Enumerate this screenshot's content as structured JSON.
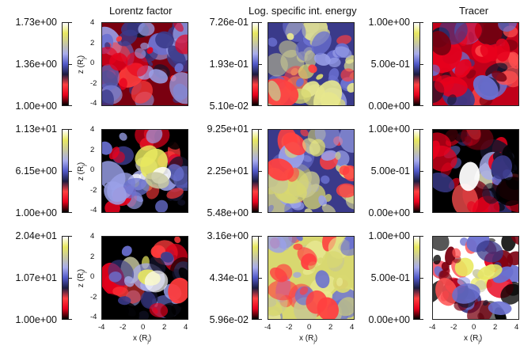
{
  "columns": [
    {
      "title": "Lorentz factor"
    },
    {
      "title": "Log. specific int. energy"
    },
    {
      "title": "Tracer"
    }
  ],
  "rows": [
    {
      "colorbars": [
        {
          "max": "1.73e+00",
          "mid": "1.36e+00",
          "min": "1.00e+00"
        },
        {
          "max": "7.26e-01",
          "mid": "1.93e-01",
          "min": "5.10e-02"
        },
        {
          "max": "1.00e+00",
          "mid": "5.00e-01",
          "min": "0.00e+00"
        }
      ]
    },
    {
      "colorbars": [
        {
          "max": "1.13e+01",
          "mid": "6.15e+00",
          "min": "1.00e+00"
        },
        {
          "max": "9.25e+01",
          "mid": "2.25e+01",
          "min": "5.48e+00"
        },
        {
          "max": "1.00e+00",
          "mid": "5.00e-01",
          "min": "0.00e+00"
        }
      ]
    },
    {
      "colorbars": [
        {
          "max": "2.04e+01",
          "mid": "1.07e+01",
          "min": "1.00e+00"
        },
        {
          "max": "3.16e+00",
          "mid": "4.34e-01",
          "min": "5.96e-02"
        },
        {
          "max": "1.00e+00",
          "mid": "5.00e-01",
          "min": "0.00e+00"
        }
      ]
    }
  ],
  "axes": {
    "xlabel": "x (R",
    "xlabel_sub": "j",
    "ylabel": "z (R",
    "ylabel_sub": "j",
    "ticks": [
      "-4",
      "-2",
      "0",
      "2",
      "4"
    ]
  },
  "colormap": [
    "#000000",
    "#e8001c",
    "#ff4040",
    "#1c1c40",
    "#5058c8",
    "#a8acec",
    "#c8c8a0",
    "#e8e860",
    "#ffffff"
  ]
}
